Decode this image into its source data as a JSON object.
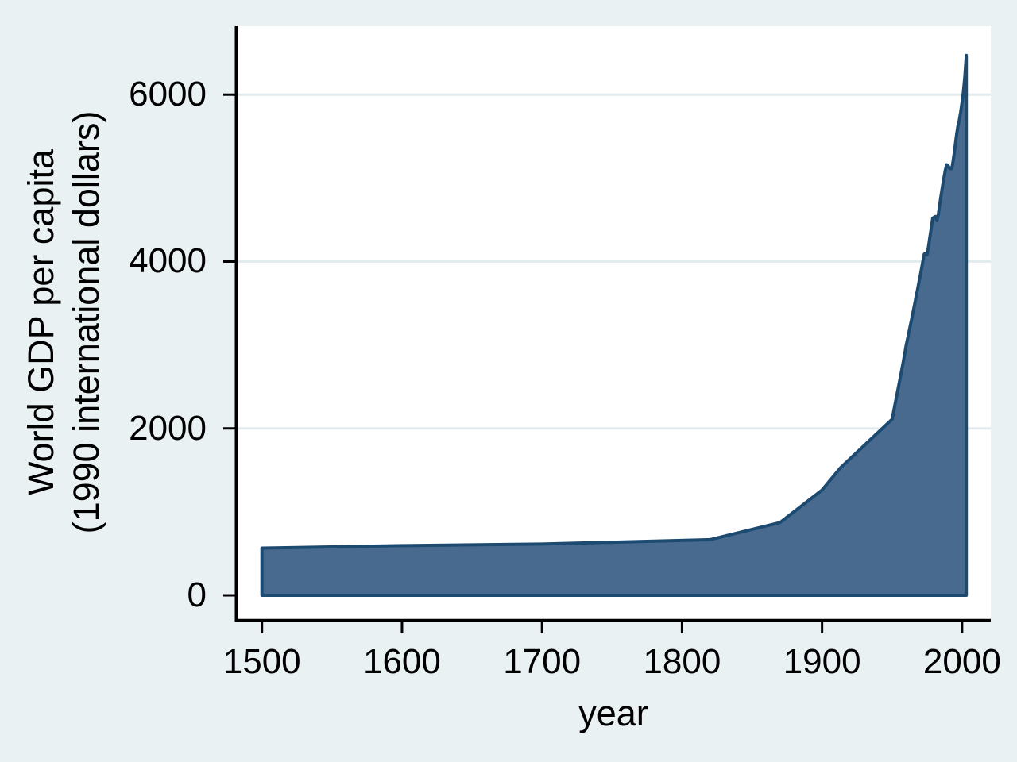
{
  "figure": {
    "background_color": "#EAF1F3",
    "plot_background_color": "#FFFFFF",
    "grid_color": "#E2EBEE",
    "axis_color": "#000000",
    "text_color": "#000000"
  },
  "chart_data": {
    "type": "area",
    "title": "",
    "xlabel": "year",
    "ylabel_lines": [
      "World GDP per capita",
      "(1990 international dollars)"
    ],
    "legend": "none",
    "grid": true,
    "xlim": [
      1482,
      2020.5
    ],
    "ylim": [
      -285,
      6820
    ],
    "xticks": [
      1500,
      1600,
      1700,
      1800,
      1900,
      2000
    ],
    "yticks": [
      0,
      2000,
      4000,
      6000
    ],
    "gridlines_y": [
      2000,
      4000,
      6000
    ],
    "baseline": 0,
    "series": [
      {
        "name": "World GDP per capita (1990 international dollars)",
        "fill_color": "#486A8E",
        "line_color": "#1D4A70",
        "points": [
          [
            1500,
            566
          ],
          [
            1600,
            596
          ],
          [
            1700,
            615
          ],
          [
            1820,
            667
          ],
          [
            1870,
            873
          ],
          [
            1900,
            1262
          ],
          [
            1913,
            1526
          ],
          [
            1950,
            2110
          ],
          [
            1952,
            2280
          ],
          [
            1954,
            2450
          ],
          [
            1956,
            2620
          ],
          [
            1958,
            2800
          ],
          [
            1960,
            2990
          ],
          [
            1962,
            3150
          ],
          [
            1964,
            3310
          ],
          [
            1966,
            3480
          ],
          [
            1968,
            3650
          ],
          [
            1970,
            3820
          ],
          [
            1972,
            4000
          ],
          [
            1973,
            4090
          ],
          [
            1974,
            4100
          ],
          [
            1975,
            4080
          ],
          [
            1976,
            4180
          ],
          [
            1977,
            4290
          ],
          [
            1978,
            4400
          ],
          [
            1979,
            4520
          ],
          [
            1980,
            4530
          ],
          [
            1981,
            4540
          ],
          [
            1982,
            4490
          ],
          [
            1983,
            4560
          ],
          [
            1984,
            4680
          ],
          [
            1985,
            4790
          ],
          [
            1986,
            4900
          ],
          [
            1987,
            5000
          ],
          [
            1988,
            5090
          ],
          [
            1989,
            5160
          ],
          [
            1990,
            5150
          ],
          [
            1991,
            5120
          ],
          [
            1992,
            5110
          ],
          [
            1993,
            5140
          ],
          [
            1994,
            5250
          ],
          [
            1995,
            5380
          ],
          [
            1996,
            5510
          ],
          [
            1997,
            5620
          ],
          [
            1998,
            5690
          ],
          [
            1999,
            5790
          ],
          [
            2000,
            5910
          ],
          [
            2001,
            6040
          ],
          [
            2002,
            6220
          ],
          [
            2003,
            6470
          ]
        ]
      }
    ]
  }
}
